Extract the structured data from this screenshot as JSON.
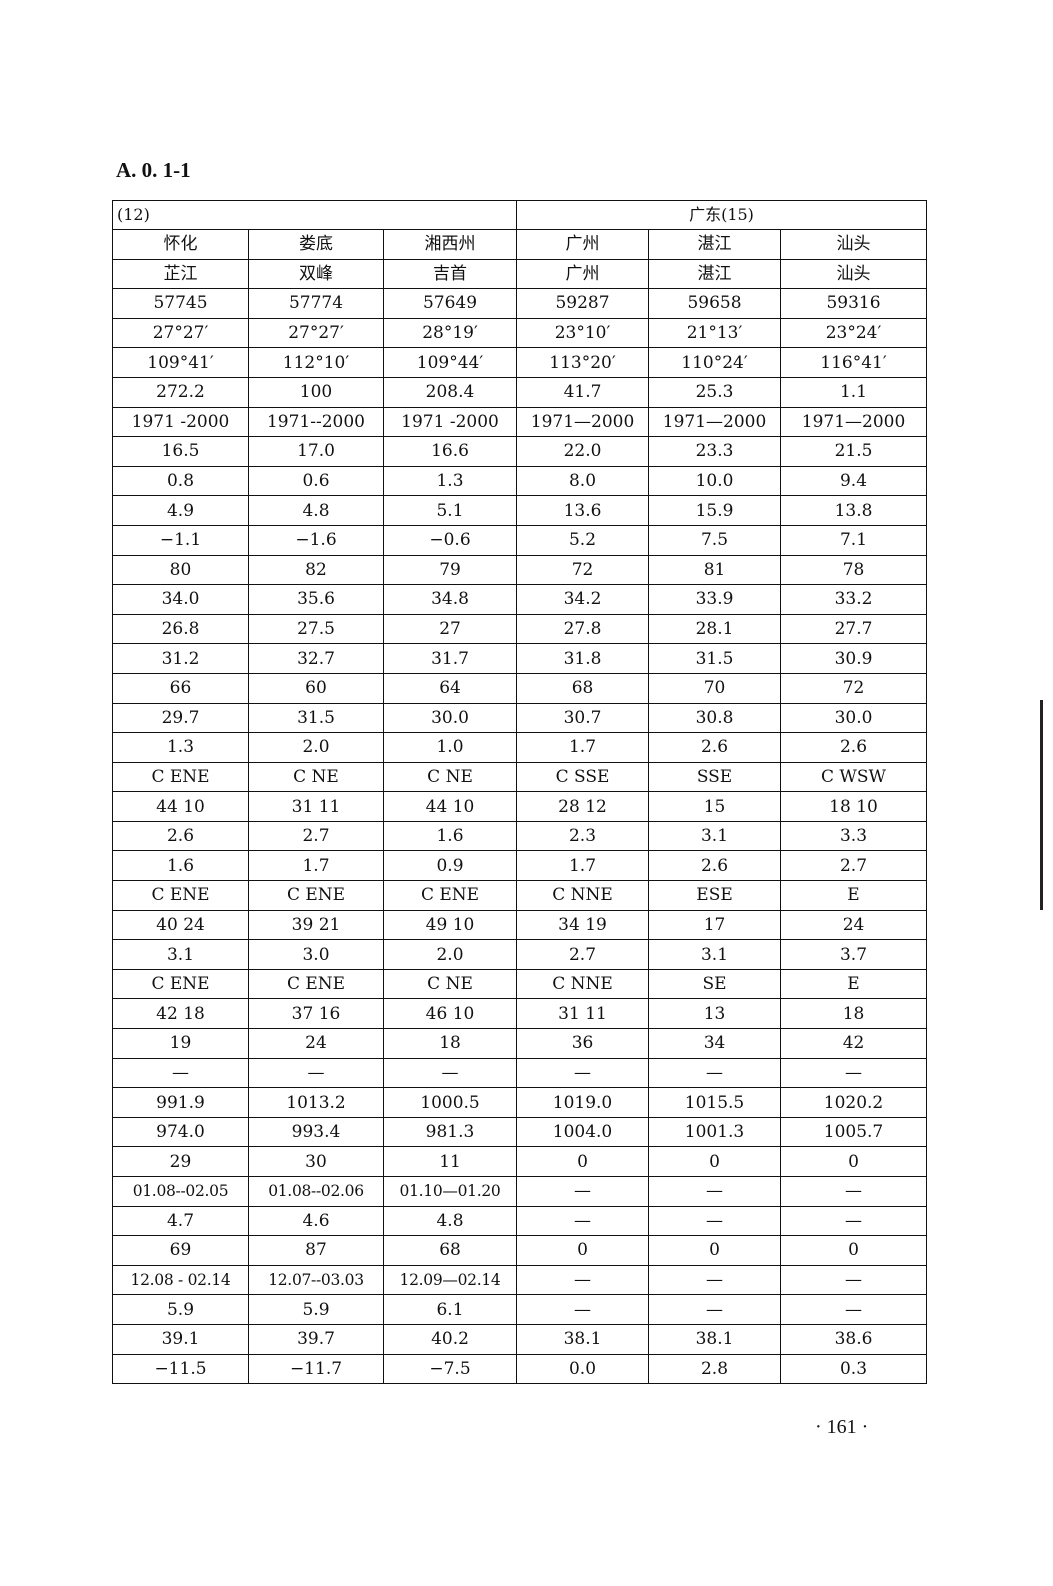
{
  "title": "A. 0. 1-1",
  "header": {
    "left": "(12)",
    "right": "广东(15)"
  },
  "rows": [
    [
      "怀化",
      "娄底",
      "湘西州",
      "广州",
      "湛江",
      "汕头"
    ],
    [
      "芷江",
      "双峰",
      "吉首",
      "广州",
      "湛江",
      "汕头"
    ],
    [
      "57745",
      "57774",
      "57649",
      "59287",
      "59658",
      "59316"
    ],
    [
      "27°27′",
      "27°27′",
      "28°19′",
      "23°10′",
      "21°13′",
      "23°24′"
    ],
    [
      "109°41′",
      "112°10′",
      "109°44′",
      "113°20′",
      "110°24′",
      "116°41′"
    ],
    [
      "272.2",
      "100",
      "208.4",
      "41.7",
      "25.3",
      "1.1"
    ],
    [
      "1971 -2000",
      "1971--2000",
      "1971 -2000",
      "1971—2000",
      "1971—2000",
      "1971—2000"
    ],
    [
      "16.5",
      "17.0",
      "16.6",
      "22.0",
      "23.3",
      "21.5"
    ],
    [
      "0.8",
      "0.6",
      "1.3",
      "8.0",
      "10.0",
      "9.4"
    ],
    [
      "4.9",
      "4.8",
      "5.1",
      "13.6",
      "15.9",
      "13.8"
    ],
    [
      "−1.1",
      "−1.6",
      "−0.6",
      "5.2",
      "7.5",
      "7.1"
    ],
    [
      "80",
      "82",
      "79",
      "72",
      "81",
      "78"
    ],
    [
      "34.0",
      "35.6",
      "34.8",
      "34.2",
      "33.9",
      "33.2"
    ],
    [
      "26.8",
      "27.5",
      "27",
      "27.8",
      "28.1",
      "27.7"
    ],
    [
      "31.2",
      "32.7",
      "31.7",
      "31.8",
      "31.5",
      "30.9"
    ],
    [
      "66",
      "60",
      "64",
      "68",
      "70",
      "72"
    ],
    [
      "29.7",
      "31.5",
      "30.0",
      "30.7",
      "30.8",
      "30.0"
    ],
    [
      "1.3",
      "2.0",
      "1.0",
      "1.7",
      "2.6",
      "2.6"
    ],
    [
      "C   ENE",
      "C   NE",
      "C   NE",
      "C   SSE",
      "SSE",
      "C   WSW"
    ],
    [
      "44   10",
      "31   11",
      "44   10",
      "28   12",
      "15",
      "18   10"
    ],
    [
      "2.6",
      "2.7",
      "1.6",
      "2.3",
      "3.1",
      "3.3"
    ],
    [
      "1.6",
      "1.7",
      "0.9",
      "1.7",
      "2.6",
      "2.7"
    ],
    [
      "C   ENE",
      "C   ENE",
      "C   ENE",
      "C   NNE",
      "ESE",
      "E"
    ],
    [
      "40   24",
      "39   21",
      "49   10",
      "34   19",
      "17",
      "24"
    ],
    [
      "3.1",
      "3.0",
      "2.0",
      "2.7",
      "3.1",
      "3.7"
    ],
    [
      "C   ENE",
      "C   ENE",
      "C   NE",
      "C   NNE",
      "SE",
      "E"
    ],
    [
      "42   18",
      "37   16",
      "46   10",
      "31   11",
      "13",
      "18"
    ],
    [
      "19",
      "24",
      "18",
      "36",
      "34",
      "42"
    ],
    [
      "—",
      "—",
      "—",
      "—",
      "—",
      "—"
    ],
    [
      "991.9",
      "1013.2",
      "1000.5",
      "1019.0",
      "1015.5",
      "1020.2"
    ],
    [
      "974.0",
      "993.4",
      "981.3",
      "1004.0",
      "1001.3",
      "1005.7"
    ],
    [
      "29",
      "30",
      "11",
      "0",
      "0",
      "0"
    ],
    [
      "01.08--02.05",
      "01.08--02.06",
      "01.10—01.20",
      "—",
      "—",
      "—"
    ],
    [
      "4.7",
      "4.6",
      "4.8",
      "—",
      "—",
      "—"
    ],
    [
      "69",
      "87",
      "68",
      "0",
      "0",
      "0"
    ],
    [
      "12.08 - 02.14",
      "12.07--03.03",
      "12.09—02.14",
      "—",
      "—",
      "—"
    ],
    [
      "5.9",
      "5.9",
      "6.1",
      "—",
      "—",
      "—"
    ],
    [
      "39.1",
      "39.7",
      "40.2",
      "38.1",
      "38.1",
      "38.6"
    ],
    [
      "−11.5",
      "−11.7",
      "−7.5",
      "0.0",
      "2.8",
      "0.3"
    ]
  ],
  "page_number": "· 161 ·"
}
